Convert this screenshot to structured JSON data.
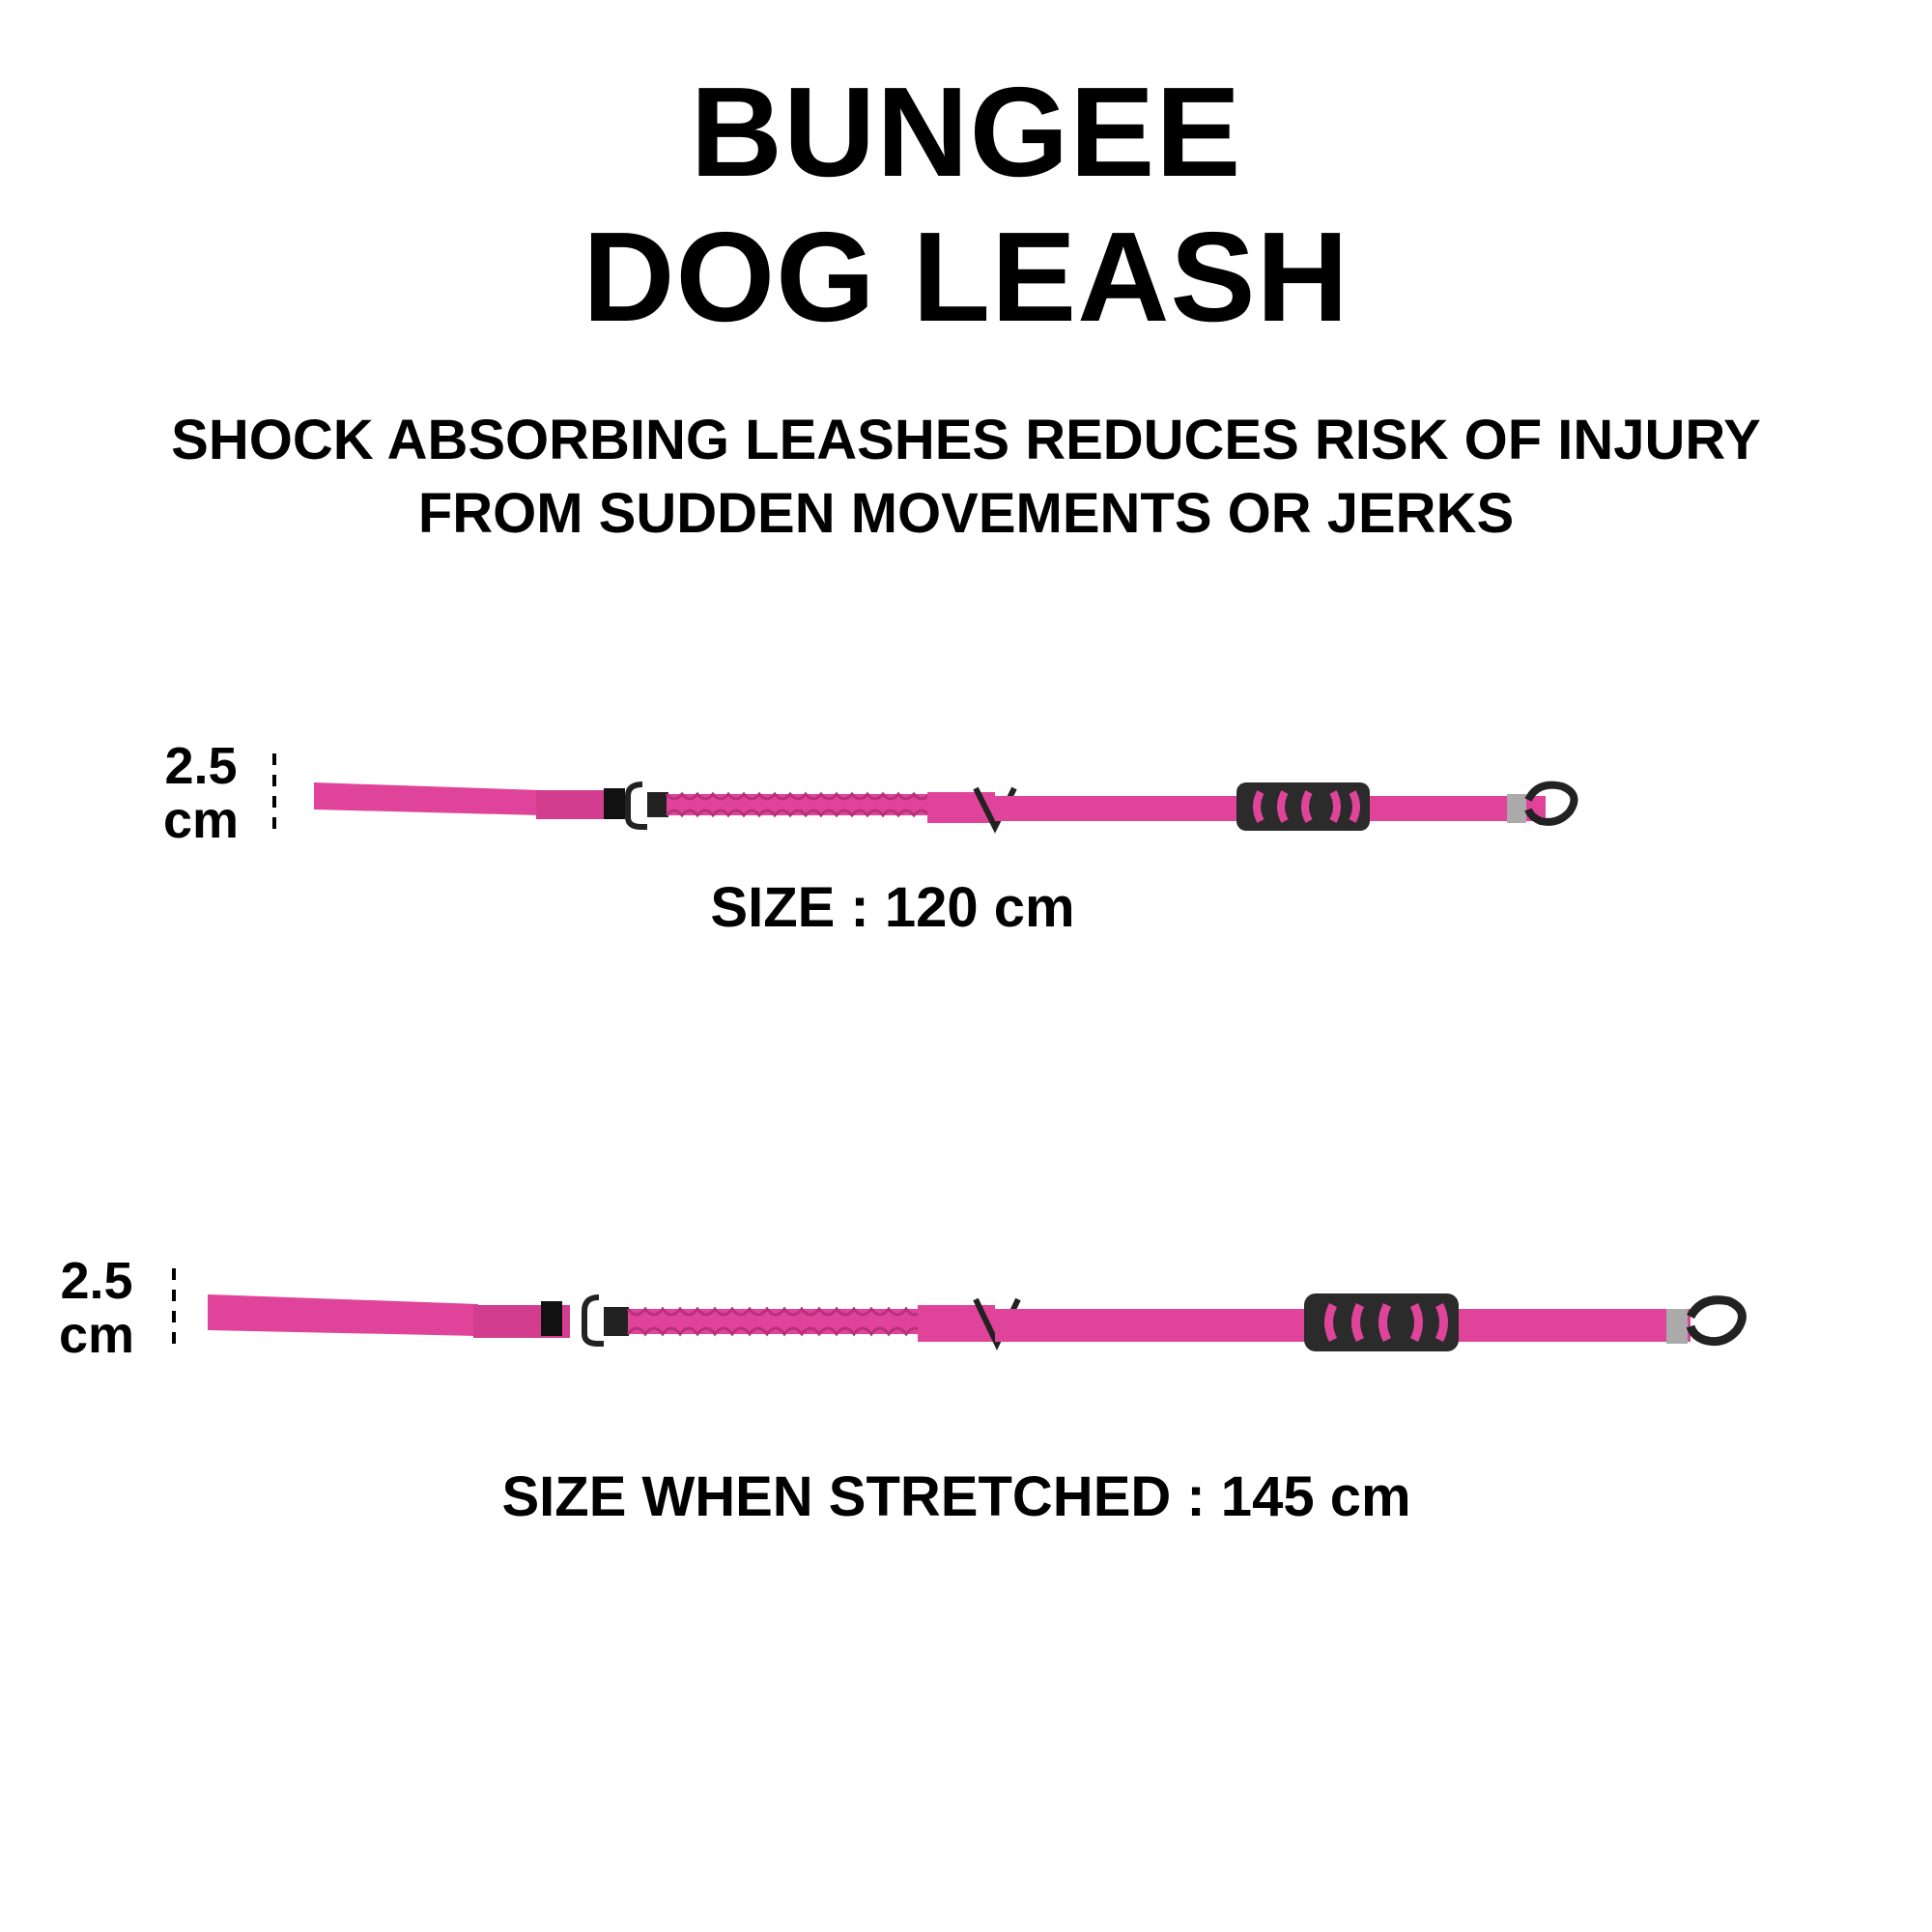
{
  "header": {
    "title_line1": "BUNGEE",
    "title_line2": "DOG LEASH",
    "subtitle_line1": "SHOCK ABSORBING LEASHES REDUCES RISK OF INJURY",
    "subtitle_line2": "FROM SUDDEN MOVEMENTS OR JERKS"
  },
  "leash_normal": {
    "width_value": "2.5",
    "width_unit": "cm",
    "size_label": "SIZE : 120 cm"
  },
  "leash_stretched": {
    "width_value": "2.5",
    "width_unit": "cm",
    "size_label": "SIZE WHEN STRETCHED : 145 cm"
  },
  "colors": {
    "leash_pink": "#e0449a",
    "leash_pink_dark": "#b8307c",
    "handle_black": "#2b2b2b",
    "background": "#ffffff",
    "text": "#000000"
  }
}
